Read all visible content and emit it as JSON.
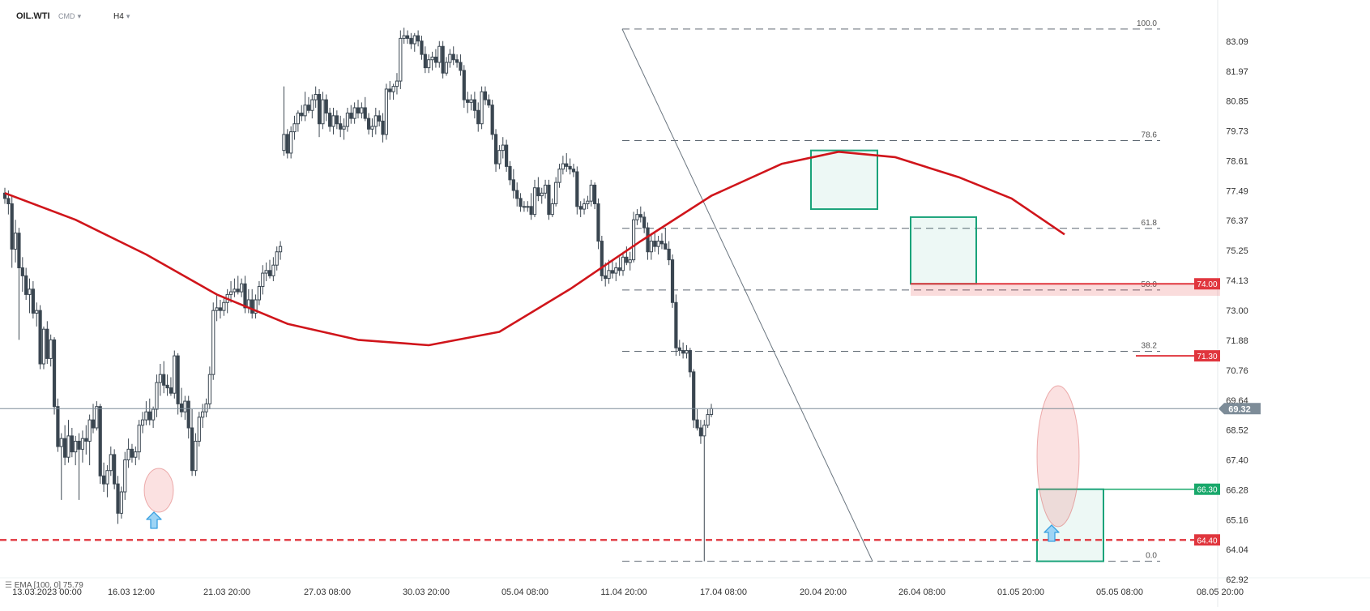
{
  "header": {
    "symbol": "OIL.WTI",
    "instrument_type": "CMD",
    "timeframe": "H4"
  },
  "indicator": {
    "label": "EMA [100, 0] 75.79",
    "name": "EMA",
    "params": "[100, 0]",
    "value": "75.79"
  },
  "colors": {
    "up": "#4a5a6a",
    "down": "#3a4651",
    "ema": "#d0151b",
    "level_red": "#e0363e",
    "level_green": "#19a86b",
    "box_green": "#1aa37a",
    "last_price": "#7d8c98"
  },
  "chart_data": {
    "type": "candlestick",
    "instrument": "OIL.WTI",
    "timeframe": "H4",
    "x_tick_labels": [
      "13.03.2023 00:00",
      "16.03 12:00",
      "21.03 20:00",
      "27.03 08:00",
      "30.03 20:00",
      "05.04 08:00",
      "11.04 20:00",
      "17.04 08:00",
      "20.04 20:00",
      "26.04 08:00",
      "01.05 20:00",
      "05.05 08:00",
      "08.05 20:00"
    ],
    "y_tick_labels": [
      "83.09",
      "81.97",
      "80.85",
      "79.73",
      "78.61",
      "77.49",
      "76.37",
      "75.25",
      "74.13",
      "73.00",
      "71.88",
      "70.76",
      "69.64",
      "68.52",
      "67.40",
      "66.28",
      "65.16",
      "64.04",
      "62.92"
    ],
    "ylim": [
      62.92,
      83.6
    ],
    "last_price": 69.32,
    "fibonacci": [
      {
        "label": "100.0",
        "price": 83.55
      },
      {
        "label": "78.6",
        "price": 79.37
      },
      {
        "label": "61.8",
        "price": 76.08
      },
      {
        "label": "50.0",
        "price": 73.77
      },
      {
        "label": "38.2",
        "price": 71.47
      },
      {
        "label": "0.0",
        "price": 63.6
      }
    ],
    "price_levels": [
      {
        "label": "74.00",
        "price": 74.0,
        "style": "red-solid"
      },
      {
        "label": "71.30",
        "price": 71.3,
        "style": "red-solid"
      },
      {
        "label": "66.30",
        "price": 66.3,
        "style": "green"
      },
      {
        "label": "64.40",
        "price": 64.4,
        "style": "red-dashed"
      }
    ],
    "ema_100": [
      {
        "x": 0,
        "y": 77.4
      },
      {
        "x": 20,
        "y": 76.4
      },
      {
        "x": 40,
        "y": 75.1
      },
      {
        "x": 60,
        "y": 73.6
      },
      {
        "x": 80,
        "y": 72.5
      },
      {
        "x": 100,
        "y": 71.9
      },
      {
        "x": 120,
        "y": 71.7
      },
      {
        "x": 140,
        "y": 72.2
      },
      {
        "x": 160,
        "y": 73.8
      },
      {
        "x": 180,
        "y": 75.6
      },
      {
        "x": 200,
        "y": 77.3
      },
      {
        "x": 220,
        "y": 78.5
      },
      {
        "x": 236,
        "y": 78.95
      },
      {
        "x": 252,
        "y": 78.75
      },
      {
        "x": 270,
        "y": 78.0
      },
      {
        "x": 285,
        "y": 77.2
      },
      {
        "x": 300,
        "y": 75.85
      }
    ],
    "candles": [
      [
        77.4,
        77.6,
        77.0,
        77.2
      ],
      [
        77.2,
        77.5,
        76.6,
        77.0
      ],
      [
        77.0,
        77.3,
        74.6,
        75.3
      ],
      [
        75.3,
        76.4,
        74.8,
        75.9
      ],
      [
        75.9,
        76.1,
        71.9,
        74.6
      ],
      [
        74.6,
        75.0,
        73.7,
        74.3
      ],
      [
        74.3,
        74.6,
        73.4,
        73.6
      ],
      [
        73.6,
        74.2,
        72.9,
        73.8
      ],
      [
        73.8,
        74.1,
        72.7,
        72.9
      ],
      [
        72.9,
        73.3,
        72.4,
        73.0
      ],
      [
        73.0,
        73.2,
        70.8,
        71.0
      ],
      [
        71.0,
        72.4,
        70.8,
        72.3
      ],
      [
        72.3,
        72.6,
        71.0,
        71.2
      ],
      [
        71.2,
        72.1,
        70.9,
        71.9
      ],
      [
        71.9,
        72.0,
        69.1,
        69.4
      ],
      [
        69.4,
        69.7,
        67.7,
        67.9
      ],
      [
        67.9,
        68.4,
        65.9,
        68.2
      ],
      [
        68.2,
        68.7,
        67.2,
        67.5
      ],
      [
        67.5,
        68.9,
        67.3,
        68.3
      ],
      [
        68.3,
        68.6,
        67.5,
        67.7
      ],
      [
        67.7,
        68.3,
        67.2,
        68.1
      ],
      [
        68.1,
        68.4,
        65.9,
        67.8
      ],
      [
        67.8,
        68.5,
        67.3,
        68.2
      ],
      [
        68.2,
        68.7,
        67.6,
        68.1
      ],
      [
        68.1,
        69.1,
        67.2,
        68.9
      ],
      [
        68.9,
        69.5,
        68.4,
        68.6
      ],
      [
        68.6,
        69.6,
        68.5,
        69.4
      ],
      [
        69.4,
        69.5,
        66.5,
        66.8
      ],
      [
        66.8,
        67.3,
        66.2,
        66.5
      ],
      [
        66.5,
        67.2,
        66.0,
        67.0
      ],
      [
        67.0,
        67.9,
        66.8,
        67.6
      ],
      [
        67.6,
        67.8,
        66.3,
        66.5
      ],
      [
        66.5,
        66.8,
        65.0,
        65.4
      ],
      [
        65.4,
        66.4,
        65.2,
        66.2
      ],
      [
        66.2,
        67.7,
        65.9,
        67.4
      ],
      [
        67.4,
        68.2,
        67.1,
        67.8
      ],
      [
        67.8,
        68.0,
        67.3,
        67.5
      ],
      [
        67.5,
        67.9,
        67.2,
        67.7
      ],
      [
        67.7,
        68.9,
        67.4,
        68.7
      ],
      [
        68.7,
        69.2,
        68.4,
        68.9
      ],
      [
        68.9,
        69.6,
        68.7,
        69.2
      ],
      [
        69.2,
        69.7,
        68.7,
        68.9
      ],
      [
        68.9,
        69.4,
        68.6,
        69.3
      ],
      [
        69.3,
        70.6,
        69.0,
        70.3
      ],
      [
        70.3,
        71.0,
        69.8,
        70.6
      ],
      [
        70.6,
        71.1,
        69.9,
        70.2
      ],
      [
        70.2,
        70.6,
        69.8,
        70.1
      ],
      [
        70.1,
        70.5,
        69.8,
        69.9
      ],
      [
        69.9,
        71.5,
        69.7,
        71.3
      ],
      [
        71.3,
        71.4,
        69.1,
        69.5
      ],
      [
        69.5,
        70.1,
        69.0,
        69.2
      ],
      [
        69.2,
        69.8,
        68.9,
        69.6
      ],
      [
        69.6,
        69.8,
        68.2,
        68.6
      ],
      [
        68.6,
        69.3,
        66.8,
        67.0
      ],
      [
        67.0,
        68.4,
        66.8,
        68.1
      ],
      [
        68.1,
        69.2,
        67.9,
        69.0
      ],
      [
        69.0,
        69.5,
        68.6,
        69.2
      ],
      [
        69.2,
        69.7,
        69.0,
        69.5
      ],
      [
        69.5,
        70.9,
        69.3,
        70.6
      ],
      [
        70.6,
        73.3,
        70.4,
        73.0
      ],
      [
        73.0,
        73.6,
        72.6,
        73.1
      ],
      [
        73.1,
        73.4,
        72.7,
        73.0
      ],
      [
        73.0,
        73.5,
        72.8,
        73.3
      ],
      [
        73.3,
        73.8,
        72.9,
        73.6
      ],
      [
        73.6,
        74.1,
        73.3,
        73.7
      ],
      [
        73.7,
        74.2,
        73.5,
        73.8
      ],
      [
        73.8,
        74.3,
        73.6,
        73.7
      ],
      [
        73.7,
        74.2,
        73.5,
        74.0
      ],
      [
        74.0,
        74.3,
        72.9,
        73.1
      ],
      [
        73.1,
        73.8,
        72.9,
        73.4
      ],
      [
        73.4,
        73.8,
        72.7,
        72.9
      ],
      [
        72.9,
        73.6,
        72.7,
        73.4
      ],
      [
        73.4,
        74.1,
        73.2,
        73.9
      ],
      [
        73.9,
        74.7,
        73.6,
        74.4
      ],
      [
        74.4,
        74.8,
        74.1,
        74.5
      ],
      [
        74.5,
        74.9,
        74.2,
        74.3
      ],
      [
        74.3,
        75.0,
        74.1,
        74.7
      ],
      [
        74.7,
        75.4,
        74.5,
        75.2
      ],
      [
        75.2,
        75.6,
        74.9,
        75.4
      ],
      [
        79.0,
        81.4,
        78.8,
        79.6
      ],
      [
        79.6,
        79.8,
        78.7,
        78.9
      ],
      [
        78.9,
        79.9,
        78.7,
        79.7
      ],
      [
        79.7,
        80.3,
        79.4,
        80.0
      ],
      [
        80.0,
        80.5,
        79.7,
        80.4
      ],
      [
        80.4,
        80.7,
        80.1,
        80.3
      ],
      [
        80.3,
        81.2,
        80.1,
        80.7
      ],
      [
        80.7,
        81.0,
        80.4,
        80.5
      ],
      [
        80.5,
        81.1,
        80.2,
        80.9
      ],
      [
        80.9,
        81.4,
        80.6,
        81.1
      ],
      [
        81.1,
        81.3,
        79.5,
        80.0
      ],
      [
        80.0,
        81.2,
        79.8,
        80.9
      ],
      [
        80.9,
        81.1,
        80.1,
        80.4
      ],
      [
        80.4,
        80.6,
        79.7,
        79.9
      ],
      [
        79.9,
        80.6,
        79.6,
        80.3
      ],
      [
        80.3,
        80.5,
        79.8,
        80.0
      ],
      [
        80.0,
        80.3,
        79.5,
        79.8
      ],
      [
        79.8,
        80.2,
        79.4,
        79.9
      ],
      [
        79.9,
        80.6,
        79.7,
        80.4
      ],
      [
        80.4,
        80.7,
        80.0,
        80.2
      ],
      [
        80.2,
        80.8,
        80.0,
        80.6
      ],
      [
        80.6,
        80.9,
        80.2,
        80.4
      ],
      [
        80.4,
        80.8,
        80.2,
        80.6
      ],
      [
        80.6,
        81.0,
        80.1,
        80.2
      ],
      [
        80.2,
        80.4,
        79.6,
        79.8
      ],
      [
        79.8,
        80.2,
        79.5,
        79.9
      ],
      [
        79.9,
        80.6,
        79.6,
        80.3
      ],
      [
        80.3,
        80.5,
        79.9,
        80.1
      ],
      [
        80.1,
        80.4,
        79.3,
        79.6
      ],
      [
        79.6,
        81.5,
        79.4,
        81.3
      ],
      [
        81.3,
        81.6,
        80.9,
        81.2
      ],
      [
        81.2,
        81.5,
        80.9,
        81.4
      ],
      [
        81.4,
        81.9,
        81.1,
        81.6
      ],
      [
        81.6,
        83.5,
        81.3,
        83.2
      ],
      [
        83.2,
        83.6,
        83.0,
        83.3
      ],
      [
        83.3,
        83.5,
        83.0,
        83.2
      ],
      [
        83.2,
        83.4,
        82.8,
        83.0
      ],
      [
        83.0,
        83.4,
        82.7,
        83.3
      ],
      [
        83.3,
        83.5,
        82.9,
        83.1
      ],
      [
        83.1,
        83.3,
        82.4,
        82.6
      ],
      [
        82.6,
        82.9,
        81.9,
        82.1
      ],
      [
        82.1,
        82.6,
        81.9,
        82.4
      ],
      [
        82.4,
        82.7,
        82.0,
        82.5
      ],
      [
        82.5,
        82.8,
        82.1,
        82.3
      ],
      [
        82.3,
        83.1,
        82.1,
        82.9
      ],
      [
        82.9,
        83.1,
        81.7,
        81.9
      ],
      [
        81.9,
        82.5,
        81.8,
        82.3
      ],
      [
        82.3,
        82.8,
        82.1,
        82.6
      ],
      [
        82.6,
        82.9,
        82.2,
        82.4
      ],
      [
        82.4,
        82.6,
        82.1,
        82.3
      ],
      [
        82.3,
        82.6,
        81.8,
        82.0
      ],
      [
        82.0,
        82.2,
        80.6,
        80.9
      ],
      [
        80.9,
        81.2,
        80.4,
        80.8
      ],
      [
        80.8,
        81.1,
        80.5,
        80.9
      ],
      [
        80.9,
        81.2,
        80.2,
        80.5
      ],
      [
        80.5,
        80.8,
        79.7,
        80.0
      ],
      [
        80.0,
        81.4,
        79.8,
        81.2
      ],
      [
        81.2,
        81.4,
        80.7,
        80.9
      ],
      [
        80.9,
        81.1,
        80.6,
        80.7
      ],
      [
        80.7,
        80.9,
        79.4,
        79.6
      ],
      [
        79.6,
        79.8,
        78.2,
        78.5
      ],
      [
        78.5,
        79.2,
        78.3,
        79.0
      ],
      [
        79.0,
        79.5,
        78.7,
        79.2
      ],
      [
        79.2,
        79.4,
        78.2,
        78.4
      ],
      [
        78.4,
        78.6,
        77.7,
        77.9
      ],
      [
        77.9,
        78.3,
        77.2,
        77.5
      ],
      [
        77.5,
        77.8,
        76.9,
        77.2
      ],
      [
        77.2,
        77.4,
        76.7,
        76.9
      ],
      [
        76.9,
        77.1,
        76.7,
        76.9
      ],
      [
        76.9,
        77.1,
        76.7,
        76.9
      ],
      [
        76.9,
        77.4,
        76.4,
        76.6
      ],
      [
        76.6,
        77.9,
        76.5,
        77.6
      ],
      [
        77.6,
        78.0,
        77.1,
        77.3
      ],
      [
        77.3,
        77.6,
        77.0,
        77.4
      ],
      [
        77.4,
        77.9,
        77.2,
        77.7
      ],
      [
        77.7,
        77.9,
        76.4,
        76.6
      ],
      [
        76.6,
        77.2,
        76.5,
        77.0
      ],
      [
        77.0,
        78.0,
        76.9,
        77.8
      ],
      [
        77.8,
        78.5,
        77.6,
        78.3
      ],
      [
        78.3,
        78.8,
        78.1,
        78.5
      ],
      [
        78.5,
        78.9,
        78.2,
        78.4
      ],
      [
        78.4,
        78.7,
        78.1,
        78.3
      ],
      [
        78.3,
        78.5,
        78.0,
        78.2
      ],
      [
        78.2,
        78.4,
        76.6,
        76.9
      ],
      [
        76.9,
        77.1,
        76.5,
        76.8
      ],
      [
        76.8,
        77.2,
        76.6,
        77.0
      ],
      [
        77.0,
        77.3,
        76.8,
        77.1
      ],
      [
        77.1,
        77.9,
        76.9,
        77.7
      ],
      [
        77.7,
        77.8,
        76.8,
        77.0
      ],
      [
        77.0,
        77.2,
        75.3,
        75.6
      ],
      [
        75.6,
        75.8,
        74.1,
        74.3
      ],
      [
        74.3,
        74.8,
        73.9,
        74.2
      ],
      [
        74.2,
        74.9,
        74.0,
        74.5
      ],
      [
        74.5,
        74.9,
        74.2,
        74.4
      ],
      [
        74.4,
        74.8,
        74.1,
        74.6
      ],
      [
        74.6,
        75.0,
        74.3,
        74.5
      ],
      [
        74.5,
        75.2,
        74.3,
        75.0
      ],
      [
        75.0,
        75.4,
        74.7,
        74.8
      ],
      [
        74.8,
        75.2,
        74.5,
        74.9
      ],
      [
        74.9,
        76.7,
        74.8,
        76.4
      ],
      [
        76.4,
        76.8,
        76.2,
        76.6
      ],
      [
        76.6,
        76.9,
        76.3,
        76.5
      ],
      [
        76.5,
        76.7,
        75.9,
        76.1
      ],
      [
        76.1,
        76.3,
        74.9,
        75.2
      ],
      [
        75.2,
        75.9,
        74.9,
        75.6
      ],
      [
        75.6,
        75.9,
        75.2,
        75.4
      ],
      [
        75.4,
        75.8,
        75.1,
        75.6
      ],
      [
        75.6,
        75.9,
        75.3,
        75.5
      ],
      [
        75.5,
        76.1,
        75.3,
        75.3
      ],
      [
        75.3,
        75.6,
        74.7,
        74.9
      ],
      [
        74.9,
        75.1,
        73.1,
        73.3
      ],
      [
        73.3,
        73.6,
        71.3,
        71.6
      ],
      [
        71.6,
        71.9,
        71.3,
        71.5
      ],
      [
        71.5,
        71.8,
        71.2,
        71.4
      ],
      [
        71.4,
        71.7,
        71.2,
        71.5
      ],
      [
        71.5,
        71.6,
        70.5,
        70.7
      ],
      [
        70.7,
        70.8,
        68.6,
        68.9
      ],
      [
        68.9,
        69.3,
        68.5,
        68.6
      ],
      [
        68.6,
        68.9,
        68.0,
        68.3
      ],
      [
        68.3,
        68.9,
        63.6,
        68.7
      ],
      [
        68.7,
        69.3,
        68.6,
        69.1
      ],
      [
        69.1,
        69.5,
        69.0,
        69.32
      ]
    ]
  }
}
